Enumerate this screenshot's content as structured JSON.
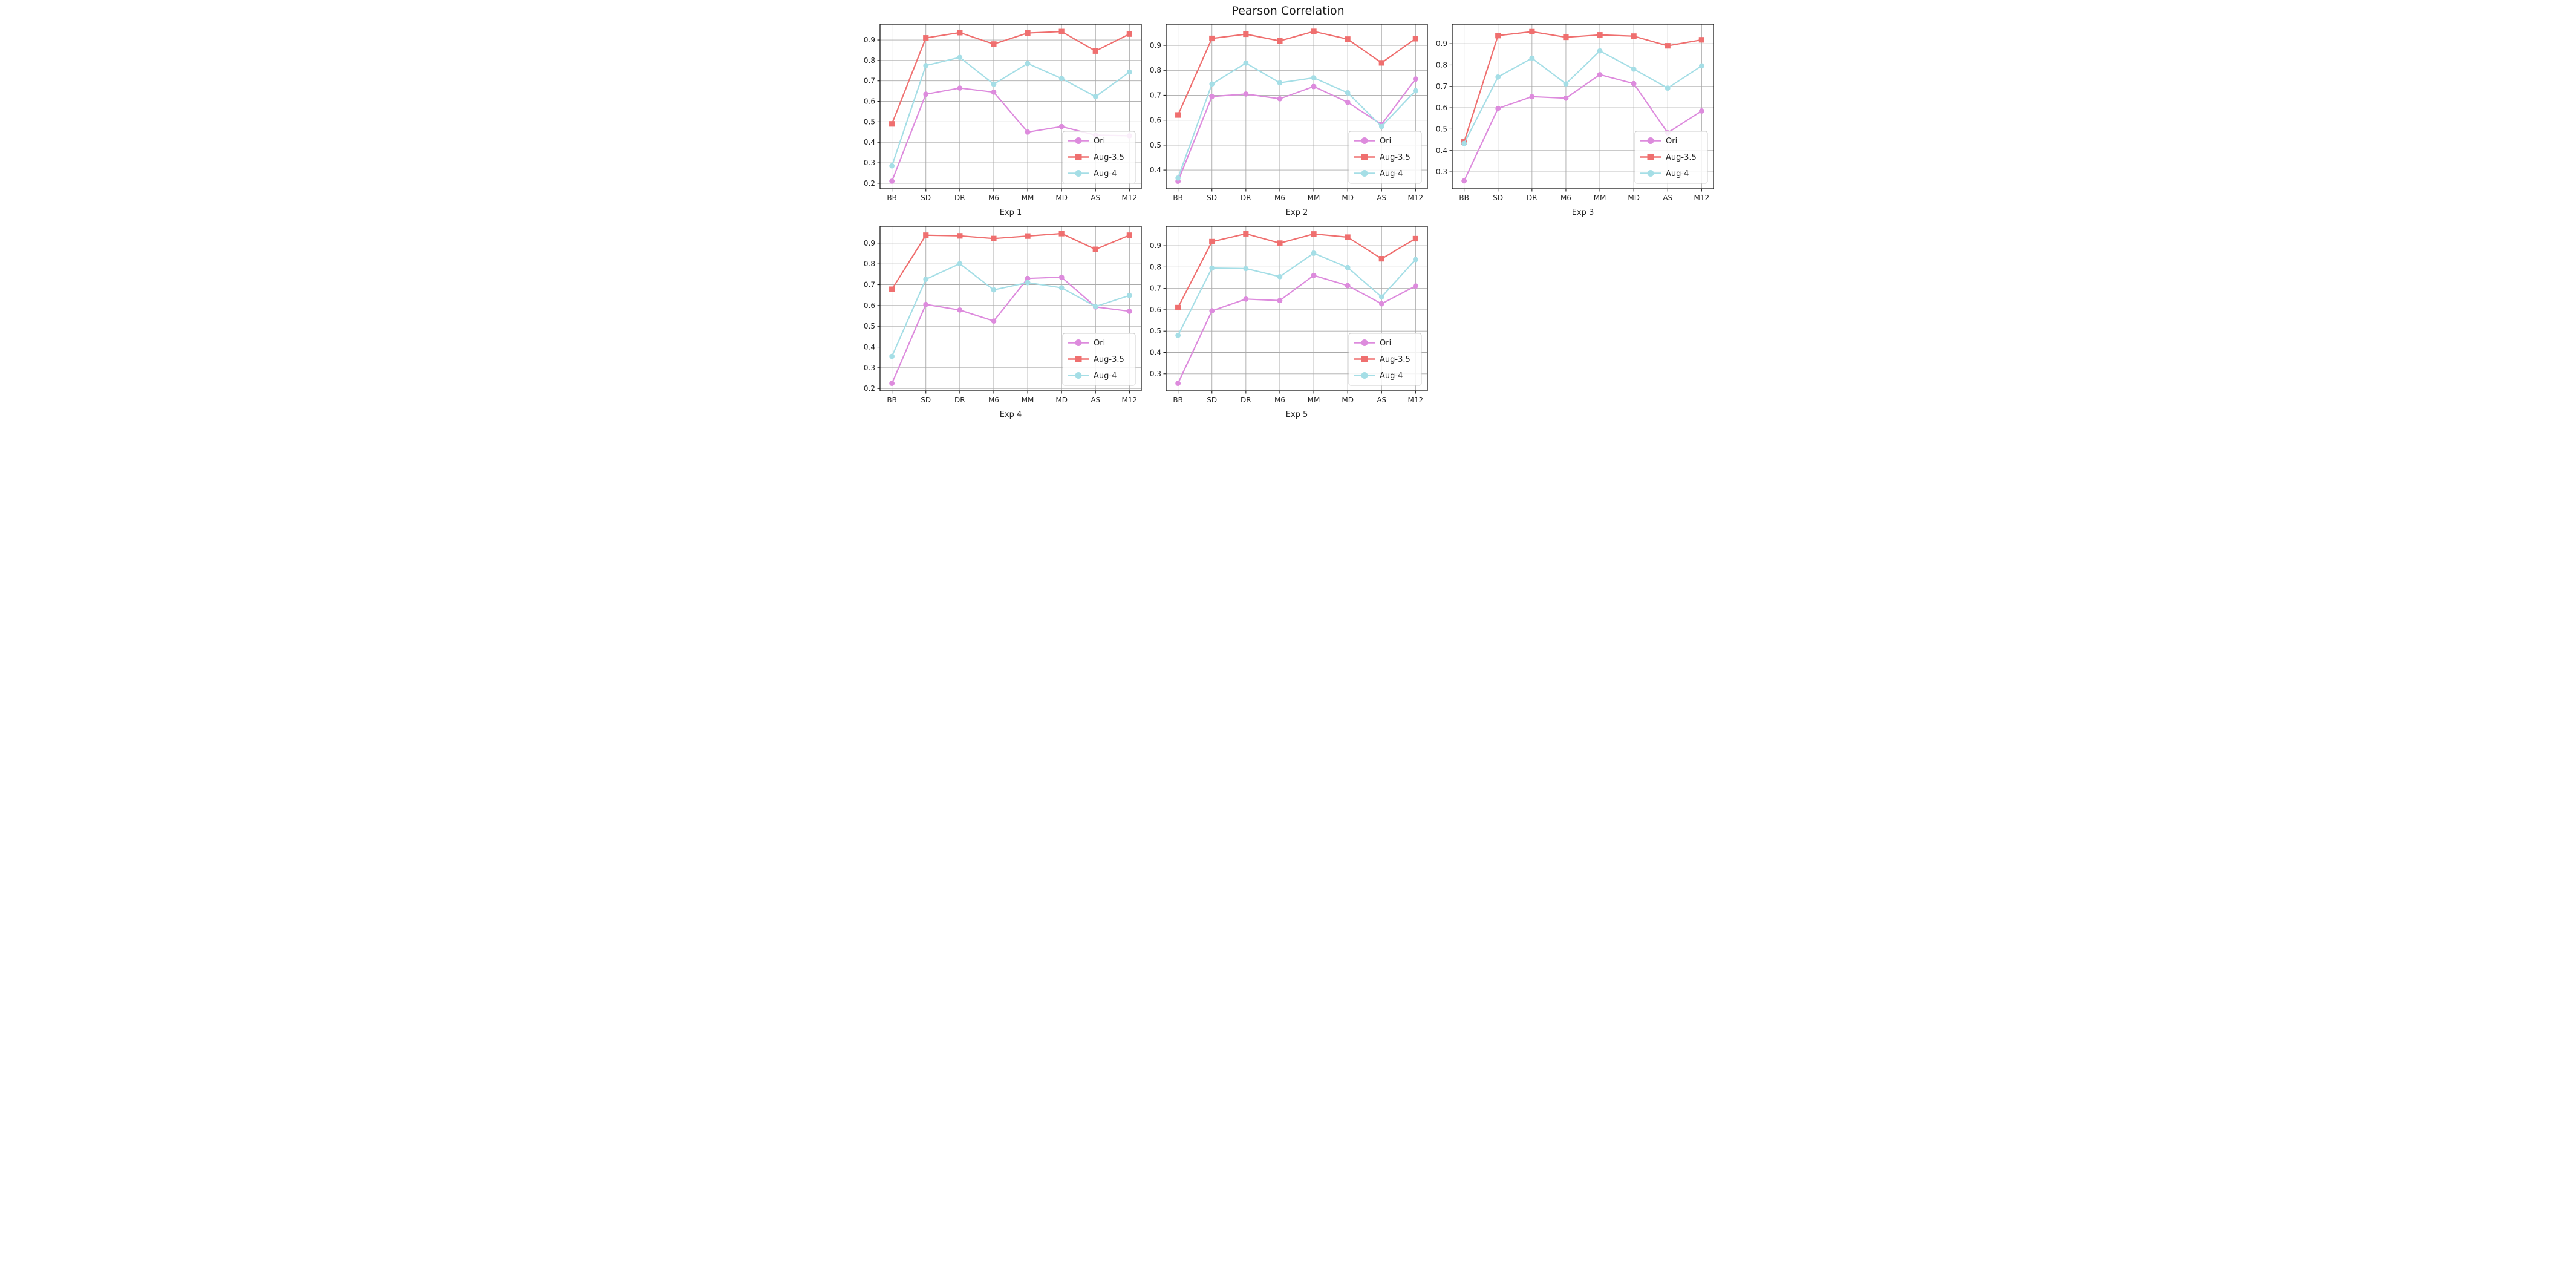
{
  "figure": {
    "title": "Pearson Correlation",
    "background": "#ffffff",
    "grid_color": "#aaaaaa",
    "axes_edge_color": "#1a1a1a",
    "text_color": "#262626",
    "legend_border_color": "#cccccc",
    "legend_background": "#ffffff"
  },
  "chart_data": [
    {
      "type": "line",
      "xlabel": "Exp 1",
      "categories": [
        "BB",
        "SD",
        "DR",
        "M6",
        "MM",
        "MD",
        "AS",
        "M12"
      ],
      "yticks": [
        0.2,
        0.3,
        0.4,
        0.5,
        0.6,
        0.7,
        0.8,
        0.9
      ],
      "ylim": [
        0.173,
        0.977
      ],
      "grid": true,
      "legend_position": "lower right",
      "series": [
        {
          "name": "Ori",
          "color": "#DD8BDD",
          "marker": "circle",
          "values": [
            0.21,
            0.635,
            0.665,
            0.645,
            0.45,
            0.477,
            0.435,
            0.432
          ]
        },
        {
          "name": "Aug-3.5",
          "color": "#EF6F6F",
          "marker": "square",
          "values": [
            0.49,
            0.91,
            0.936,
            0.88,
            0.934,
            0.941,
            0.846,
            0.929
          ]
        },
        {
          "name": "Aug-4",
          "color": "#A5DEE6",
          "marker": "circle",
          "values": [
            0.285,
            0.775,
            0.815,
            0.684,
            0.785,
            0.712,
            0.623,
            0.743
          ]
        }
      ]
    },
    {
      "type": "line",
      "xlabel": "Exp 2",
      "categories": [
        "BB",
        "SD",
        "DR",
        "M6",
        "MM",
        "MD",
        "AS",
        "M12"
      ],
      "yticks": [
        0.4,
        0.5,
        0.6,
        0.7,
        0.8,
        0.9
      ],
      "ylim": [
        0.325,
        0.985
      ],
      "grid": true,
      "legend_position": "lower right",
      "series": [
        {
          "name": "Ori",
          "color": "#DD8BDD",
          "marker": "circle",
          "values": [
            0.355,
            0.695,
            0.705,
            0.686,
            0.735,
            0.672,
            0.583,
            0.765
          ]
        },
        {
          "name": "Aug-3.5",
          "color": "#EF6F6F",
          "marker": "square",
          "values": [
            0.621,
            0.928,
            0.945,
            0.918,
            0.956,
            0.925,
            0.83,
            0.927
          ]
        },
        {
          "name": "Aug-4",
          "color": "#A5DEE6",
          "marker": "circle",
          "values": [
            0.368,
            0.745,
            0.829,
            0.75,
            0.77,
            0.71,
            0.575,
            0.718
          ]
        }
      ]
    },
    {
      "type": "line",
      "xlabel": "Exp 3",
      "categories": [
        "BB",
        "SD",
        "DR",
        "M6",
        "MM",
        "MD",
        "AS",
        "M12"
      ],
      "yticks": [
        0.3,
        0.4,
        0.5,
        0.6,
        0.7,
        0.8,
        0.9
      ],
      "ylim": [
        0.221,
        0.991
      ],
      "grid": true,
      "legend_position": "lower right",
      "series": [
        {
          "name": "Ori",
          "color": "#DD8BDD",
          "marker": "circle",
          "values": [
            0.258,
            0.597,
            0.652,
            0.645,
            0.755,
            0.713,
            0.483,
            0.585
          ]
        },
        {
          "name": "Aug-3.5",
          "color": "#EF6F6F",
          "marker": "square",
          "values": [
            0.44,
            0.938,
            0.956,
            0.93,
            0.941,
            0.935,
            0.89,
            0.918
          ]
        },
        {
          "name": "Aug-4",
          "color": "#A5DEE6",
          "marker": "circle",
          "values": [
            0.433,
            0.744,
            0.832,
            0.712,
            0.866,
            0.781,
            0.692,
            0.796
          ]
        }
      ]
    },
    {
      "type": "line",
      "xlabel": "Exp 4",
      "categories": [
        "BB",
        "SD",
        "DR",
        "M6",
        "MM",
        "MD",
        "AS",
        "M12"
      ],
      "yticks": [
        0.2,
        0.3,
        0.4,
        0.5,
        0.6,
        0.7,
        0.8,
        0.9
      ],
      "ylim": [
        0.189,
        0.981
      ],
      "grid": true,
      "legend_position": "lower right",
      "series": [
        {
          "name": "Ori",
          "color": "#DD8BDD",
          "marker": "circle",
          "values": [
            0.225,
            0.605,
            0.578,
            0.525,
            0.73,
            0.736,
            0.593,
            0.572
          ]
        },
        {
          "name": "Aug-3.5",
          "color": "#EF6F6F",
          "marker": "square",
          "values": [
            0.678,
            0.938,
            0.935,
            0.922,
            0.934,
            0.946,
            0.87,
            0.938
          ]
        },
        {
          "name": "Aug-4",
          "color": "#A5DEE6",
          "marker": "circle",
          "values": [
            0.355,
            0.726,
            0.801,
            0.675,
            0.71,
            0.685,
            0.595,
            0.648
          ]
        }
      ]
    },
    {
      "type": "line",
      "xlabel": "Exp 5",
      "categories": [
        "BB",
        "SD",
        "DR",
        "M6",
        "MM",
        "MD",
        "AS",
        "M12"
      ],
      "yticks": [
        0.3,
        0.4,
        0.5,
        0.6,
        0.7,
        0.8,
        0.9
      ],
      "ylim": [
        0.22,
        0.991
      ],
      "grid": true,
      "legend_position": "lower right",
      "series": [
        {
          "name": "Ori",
          "color": "#DD8BDD",
          "marker": "circle",
          "values": [
            0.255,
            0.595,
            0.65,
            0.643,
            0.761,
            0.713,
            0.628,
            0.711
          ]
        },
        {
          "name": "Aug-3.5",
          "color": "#EF6F6F",
          "marker": "square",
          "values": [
            0.61,
            0.919,
            0.956,
            0.912,
            0.955,
            0.94,
            0.839,
            0.933
          ]
        },
        {
          "name": "Aug-4",
          "color": "#A5DEE6",
          "marker": "circle",
          "values": [
            0.48,
            0.795,
            0.793,
            0.755,
            0.865,
            0.798,
            0.66,
            0.835
          ]
        }
      ]
    }
  ]
}
